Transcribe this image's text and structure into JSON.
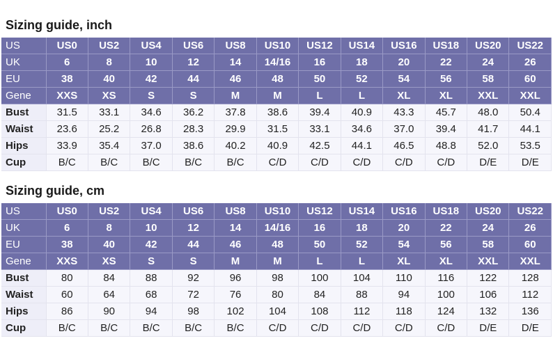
{
  "tables": [
    {
      "title": "Sizing guide, inch",
      "rows": [
        {
          "label": "US",
          "values": [
            "US0",
            "US2",
            "US4",
            "US6",
            "US8",
            "US10",
            "US12",
            "US14",
            "US16",
            "US18",
            "US20",
            "US22"
          ]
        },
        {
          "label": "UK",
          "values": [
            "6",
            "8",
            "10",
            "12",
            "14",
            "14/16",
            "16",
            "18",
            "20",
            "22",
            "24",
            "26"
          ]
        },
        {
          "label": "EU",
          "values": [
            "38",
            "40",
            "42",
            "44",
            "46",
            "48",
            "50",
            "52",
            "54",
            "56",
            "58",
            "60"
          ]
        },
        {
          "label": "Gene",
          "values": [
            "XXS",
            "XS",
            "S",
            "S",
            "M",
            "M",
            "L",
            "L",
            "XL",
            "XL",
            "XXL",
            "XXL"
          ]
        },
        {
          "label": "Bust",
          "values": [
            "31.5",
            "33.1",
            "34.6",
            "36.2",
            "37.8",
            "38.6",
            "39.4",
            "40.9",
            "43.3",
            "45.7",
            "48.0",
            "50.4"
          ]
        },
        {
          "label": "Waist",
          "values": [
            "23.6",
            "25.2",
            "26.8",
            "28.3",
            "29.9",
            "31.5",
            "33.1",
            "34.6",
            "37.0",
            "39.4",
            "41.7",
            "44.1"
          ]
        },
        {
          "label": "Hips",
          "values": [
            "33.9",
            "35.4",
            "37.0",
            "38.6",
            "40.2",
            "40.9",
            "42.5",
            "44.1",
            "46.5",
            "48.8",
            "52.0",
            "53.5"
          ]
        },
        {
          "label": "Cup",
          "values": [
            "B/C",
            "B/C",
            "B/C",
            "B/C",
            "B/C",
            "C/D",
            "C/D",
            "C/D",
            "C/D",
            "C/D",
            "D/E",
            "D/E"
          ]
        }
      ]
    },
    {
      "title": "Sizing guide, cm",
      "rows": [
        {
          "label": "US",
          "values": [
            "US0",
            "US2",
            "US4",
            "US6",
            "US8",
            "US10",
            "US12",
            "US14",
            "US16",
            "US18",
            "US20",
            "US22"
          ]
        },
        {
          "label": "UK",
          "values": [
            "6",
            "8",
            "10",
            "12",
            "14",
            "14/16",
            "16",
            "18",
            "20",
            "22",
            "24",
            "26"
          ]
        },
        {
          "label": "EU",
          "values": [
            "38",
            "40",
            "42",
            "44",
            "46",
            "48",
            "50",
            "52",
            "54",
            "56",
            "58",
            "60"
          ]
        },
        {
          "label": "Gene",
          "values": [
            "XXS",
            "XS",
            "S",
            "S",
            "M",
            "M",
            "L",
            "L",
            "XL",
            "XL",
            "XXL",
            "XXL"
          ]
        },
        {
          "label": "Bust",
          "values": [
            "80",
            "84",
            "88",
            "92",
            "96",
            "98",
            "100",
            "104",
            "110",
            "116",
            "122",
            "128"
          ]
        },
        {
          "label": "Waist",
          "values": [
            "60",
            "64",
            "68",
            "72",
            "76",
            "80",
            "84",
            "88",
            "94",
            "100",
            "106",
            "112"
          ]
        },
        {
          "label": "Hips",
          "values": [
            "86",
            "90",
            "94",
            "98",
            "102",
            "104",
            "108",
            "112",
            "118",
            "124",
            "132",
            "136"
          ]
        },
        {
          "label": "Cup",
          "values": [
            "B/C",
            "B/C",
            "B/C",
            "B/C",
            "B/C",
            "C/D",
            "C/D",
            "C/D",
            "C/D",
            "C/D",
            "D/E",
            "D/E"
          ]
        }
      ]
    }
  ],
  "colors": {
    "header_bg": "#6f6fa8",
    "header_text": "#ffffff",
    "body_bg": "#f6f6fc",
    "body_text": "#222222"
  }
}
